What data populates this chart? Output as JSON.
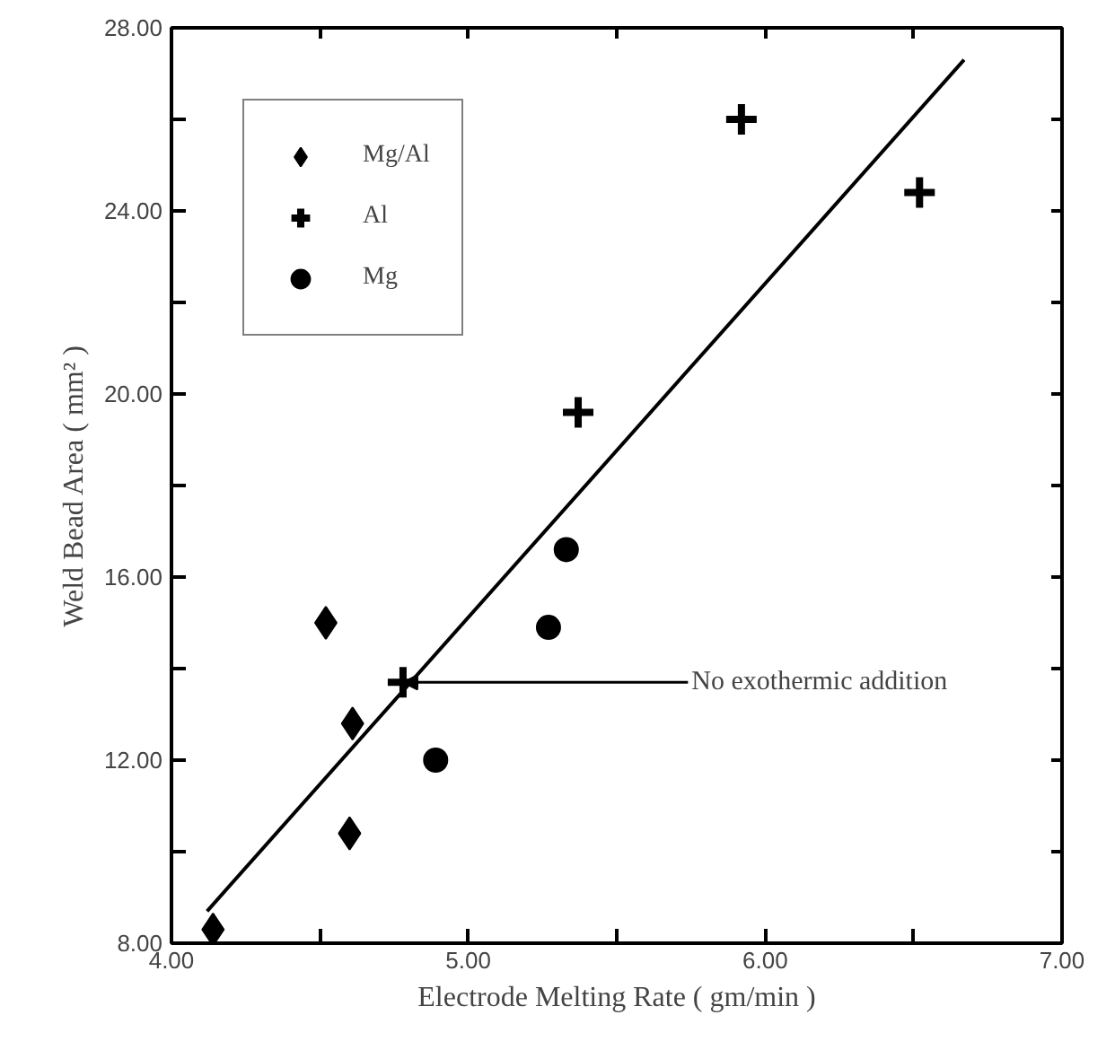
{
  "chart_data": {
    "type": "scatter",
    "xlabel": "Electrode Melting Rate ( gm/min )",
    "ylabel": "Weld Bead Area ( mm² )",
    "xlim": [
      4.0,
      7.0
    ],
    "ylim": [
      8.0,
      28.0
    ],
    "xticks": [
      {
        "value": 4.0,
        "label": "4.00"
      },
      {
        "value": 4.5,
        "label": null
      },
      {
        "value": 5.0,
        "label": "5.00"
      },
      {
        "value": 5.5,
        "label": null
      },
      {
        "value": 6.0,
        "label": "6.00"
      },
      {
        "value": 6.5,
        "label": null
      },
      {
        "value": 7.0,
        "label": "7.00"
      }
    ],
    "yticks": [
      {
        "value": 8.0,
        "label": "8.00"
      },
      {
        "value": 10.0,
        "label": null
      },
      {
        "value": 12.0,
        "label": "12.00"
      },
      {
        "value": 14.0,
        "label": null
      },
      {
        "value": 16.0,
        "label": "16.00"
      },
      {
        "value": 18.0,
        "label": null
      },
      {
        "value": 20.0,
        "label": "20.00"
      },
      {
        "value": 22.0,
        "label": null
      },
      {
        "value": 24.0,
        "label": "24.00"
      },
      {
        "value": 26.0,
        "label": null
      },
      {
        "value": 28.0,
        "label": "28.00"
      }
    ],
    "grid": false,
    "legend": "top left",
    "series": [
      {
        "name": "Mg/Al",
        "color": "#000000",
        "marker": "diamond",
        "x": [
          4.14,
          4.52,
          4.61,
          4.6
        ],
        "values": [
          8.3,
          15.0,
          12.8,
          10.4
        ]
      },
      {
        "name": "Al",
        "color": "#000000",
        "marker": "cross",
        "x": [
          5.92,
          6.52,
          5.37,
          4.78
        ],
        "values": [
          26.0,
          24.4,
          19.6,
          13.7
        ]
      },
      {
        "name": "Mg",
        "color": "#000000",
        "marker": "circle",
        "x": [
          5.33,
          5.27,
          4.89
        ],
        "values": [
          16.6,
          14.9,
          12.0
        ]
      },
      {
        "type": "line",
        "color": "#000000",
        "x": [
          4.12,
          6.67
        ],
        "values": [
          8.7,
          27.3
        ]
      }
    ],
    "annotations": [
      {
        "text": "No exothermic addition",
        "x": 4.78,
        "y": 13.7
      }
    ]
  }
}
